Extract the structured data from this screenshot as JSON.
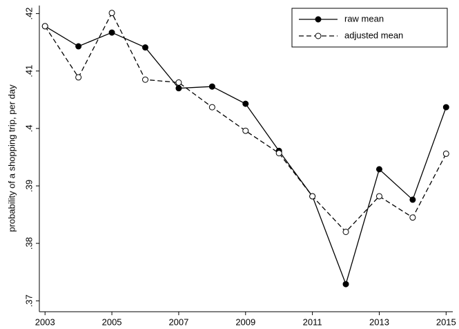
{
  "chart_data": {
    "type": "line",
    "y_label": "probability of a shopping trip, per day",
    "x": [
      2003,
      2004,
      2005,
      2006,
      2007,
      2008,
      2009,
      2010,
      2011,
      2012,
      2013,
      2014,
      2015
    ],
    "series": [
      {
        "name": "raw mean",
        "color": "#000000",
        "dashed": false,
        "marker": "filled",
        "values": [
          0.4178,
          0.4143,
          0.4167,
          0.4141,
          0.407,
          0.4073,
          0.4043,
          0.3961,
          0.3882,
          0.3729,
          0.3929,
          0.3876,
          0.4037
        ]
      },
      {
        "name": "adjusted mean",
        "color": "#000000",
        "dashed": true,
        "marker": "open",
        "values": [
          0.4178,
          0.4089,
          0.4201,
          0.4085,
          0.408,
          0.4037,
          0.3996,
          0.3957,
          0.3882,
          0.382,
          0.3882,
          0.3845,
          0.3956
        ]
      }
    ],
    "xlim": [
      2002.83,
      2015.2
    ],
    "xticks": [
      2003,
      2005,
      2007,
      2009,
      2011,
      2013,
      2015
    ],
    "ylim": [
      0.3681,
      0.4214
    ],
    "yticks": [
      {
        "value": 0.37,
        "label": ".37"
      },
      {
        "value": 0.38,
        "label": ".38"
      },
      {
        "value": 0.39,
        "label": ".39"
      },
      {
        "value": 0.4,
        "label": ".4"
      },
      {
        "value": 0.41,
        "label": ".41"
      },
      {
        "value": 0.42,
        "label": ".42"
      }
    ],
    "legend": "top-right"
  }
}
